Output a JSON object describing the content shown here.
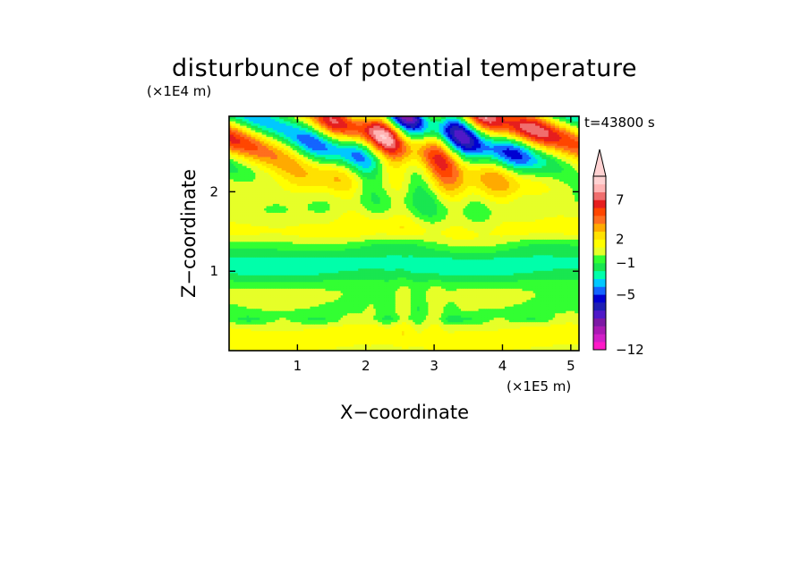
{
  "chart_data": {
    "type": "heatmap",
    "title": "disturbunce of potential temperature",
    "xlabel": "X−coordinate",
    "ylabel": "Z−coordinate",
    "x_unit": "(×1E5 m)",
    "y_unit": "(×1E4 m)",
    "time_label": "t=43800 s",
    "xlim": [
      0,
      5.12
    ],
    "ylim": [
      0,
      2.95
    ],
    "x_ticks": [
      1,
      2,
      3,
      4,
      5
    ],
    "y_ticks": [
      1,
      2
    ],
    "grid": false,
    "colorbar": {
      "levels": [
        -12,
        -11,
        -10,
        -9,
        -8,
        -7,
        -6,
        -5,
        -4,
        -3,
        -2,
        -1,
        0,
        1,
        2,
        3,
        4,
        5,
        6,
        7,
        8,
        9
      ],
      "colors": [
        "#ff19c8",
        "#d21ec8",
        "#aa19b4",
        "#7d19a5",
        "#5019c8",
        "#1e1eb4",
        "#0000d2",
        "#1464ff",
        "#00c8ff",
        "#00ffaa",
        "#19e650",
        "#32ff32",
        "#e6ff28",
        "#ffff00",
        "#ffe100",
        "#ffaa00",
        "#ff6e1e",
        "#ff4600",
        "#e61e1e",
        "#f06e6e",
        "#ffb4b4",
        "#ffd2d2"
      ],
      "labels": [
        "−12",
        "−5",
        "−1",
        "2",
        "7"
      ],
      "label_values": [
        -12,
        -5,
        -1,
        2,
        7
      ],
      "extend": "max"
    }
  }
}
